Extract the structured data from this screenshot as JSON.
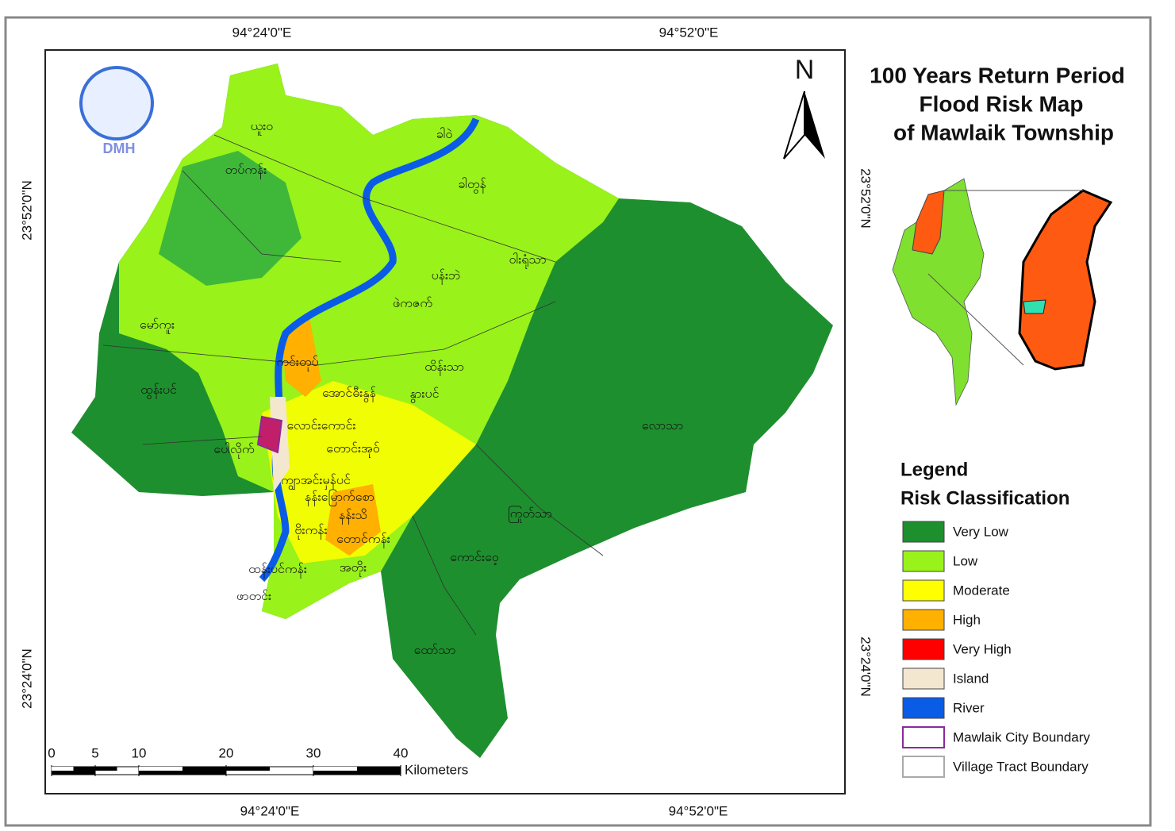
{
  "title": [
    "100 Years Return Period",
    "Flood Risk Map",
    "of Mawlaik Township"
  ],
  "coords": {
    "top": [
      "94°24'0\"E",
      "94°52'0\"E"
    ],
    "bottom": [
      "94°24'0\"E",
      "94°52'0\"E"
    ],
    "left": [
      "23°52'0\"N",
      "23°24'0\"N"
    ],
    "right": [
      "23°52'0\"N",
      "23°24'0\"N"
    ]
  },
  "north": "N",
  "logo": "DMH",
  "villages": [
    "ယူးဝ",
    "ခါဝဲ",
    "တပ်ကန်း",
    "ခါတွန်",
    "ဝါးရုံသာ",
    "ပန်းဘဲ",
    "ဖဲကဇက်",
    "မော်ကူး",
    "ကင်းတုပ်",
    "ထိန်းသာ",
    "ထွန်းပင်",
    "အောင်ဓီးနွန်",
    "နွားပင်",
    "လောင်းကောင်း",
    "လောသာ",
    "ပေါလိုက်",
    "တောင်းအုဝ်",
    "ကျွာအင်းမှန်ပင်",
    "နန်းမြောက်စော",
    "ကြုတ်သာ",
    "နန်းသိ",
    "ဗိုးကန်း",
    "တောင်ကန်း",
    "ကောင်းဝေ့",
    "ထန်းပင်ကန်း",
    "အတိုး",
    "ဖာတင်း",
    "ထော်သာ"
  ],
  "legend": {
    "title": "Legend",
    "subtitle": "Risk Classification",
    "items": [
      {
        "label": "Very Low",
        "fill": "#1e8f2e"
      },
      {
        "label": "Low",
        "fill": "#99f21a"
      },
      {
        "label": "Moderate",
        "fill": "#ffff00"
      },
      {
        "label": "High",
        "fill": "#ffb000"
      },
      {
        "label": "Very High",
        "fill": "#ff0000"
      },
      {
        "label": "Island",
        "fill": "#f4e7cf"
      },
      {
        "label": "River",
        "fill": "#0a5ce6"
      },
      {
        "label": "Mawlaik City Boundary",
        "outline": "#8a2a9a"
      },
      {
        "label": "Village Tract Boundary",
        "outline": "#aaaaaa"
      }
    ]
  },
  "scale_bar": {
    "ticks": [
      0,
      5,
      10,
      20,
      30,
      40
    ],
    "unit": "Kilometers"
  }
}
